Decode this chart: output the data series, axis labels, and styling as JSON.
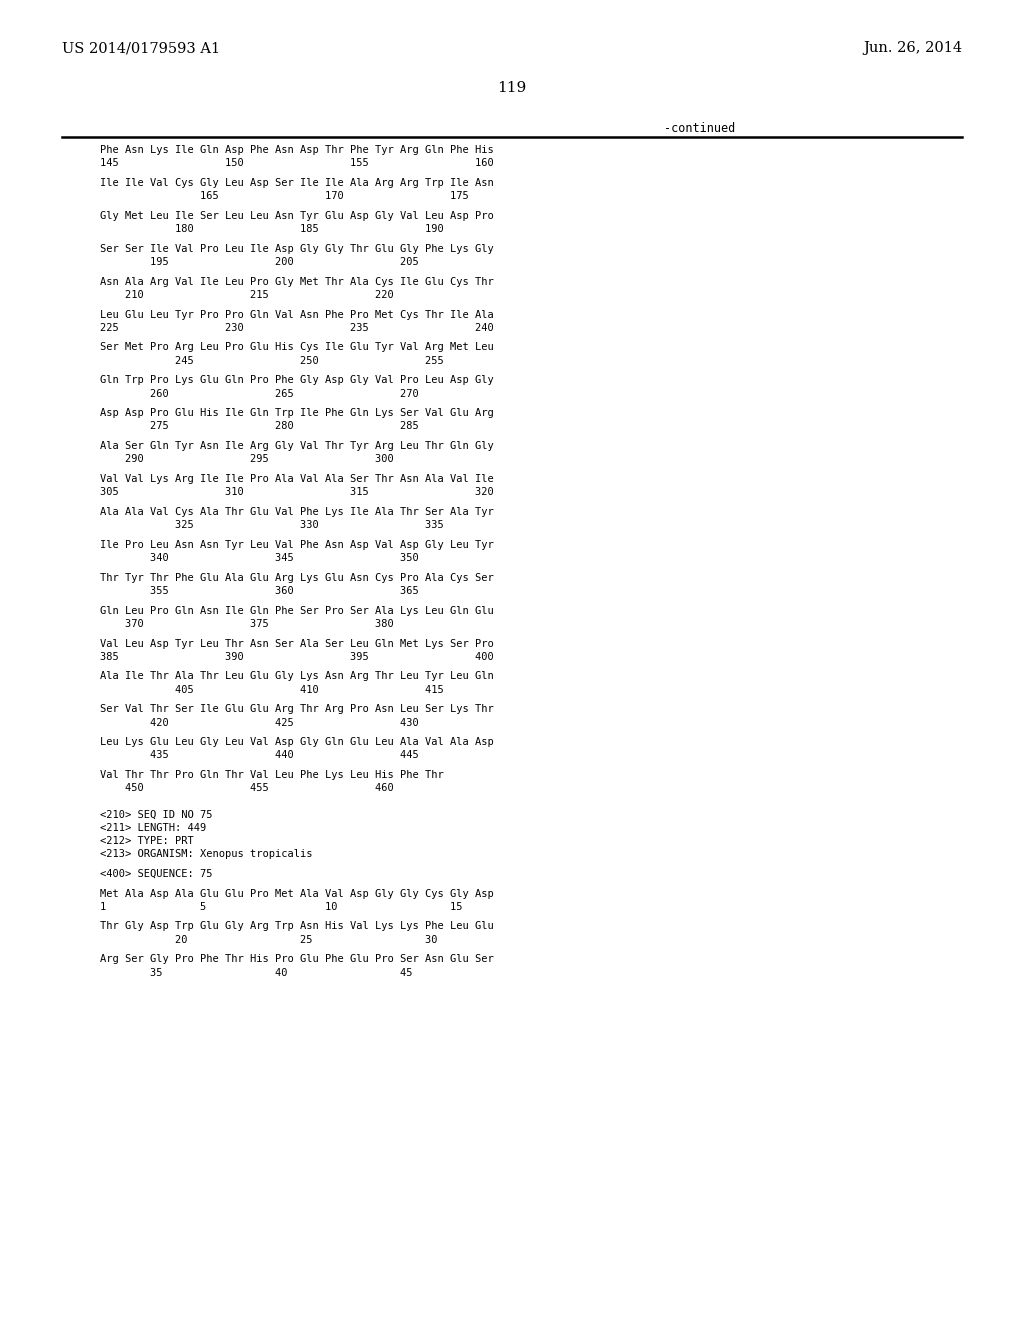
{
  "header_left": "US 2014/0179593 A1",
  "header_right": "Jun. 26, 2014",
  "page_number": "119",
  "continued_label": "-continued",
  "background_color": "#ffffff",
  "text_color": "#000000",
  "content": [
    [
      "Phe Asn Lys Ile Gln Asp Phe Asn Asp Thr Phe Tyr Arg Gln Phe His",
      "seq"
    ],
    [
      "145                 150                 155                 160",
      "num"
    ],
    [
      "",
      "blank"
    ],
    [
      "Ile Ile Val Cys Gly Leu Asp Ser Ile Ile Ala Arg Arg Trp Ile Asn",
      "seq"
    ],
    [
      "                165                 170                 175",
      "num"
    ],
    [
      "",
      "blank"
    ],
    [
      "Gly Met Leu Ile Ser Leu Leu Asn Tyr Glu Asp Gly Val Leu Asp Pro",
      "seq"
    ],
    [
      "            180                 185                 190",
      "num"
    ],
    [
      "",
      "blank"
    ],
    [
      "Ser Ser Ile Val Pro Leu Ile Asp Gly Gly Thr Glu Gly Phe Lys Gly",
      "seq"
    ],
    [
      "        195                 200                 205",
      "num"
    ],
    [
      "",
      "blank"
    ],
    [
      "Asn Ala Arg Val Ile Leu Pro Gly Met Thr Ala Cys Ile Glu Cys Thr",
      "seq"
    ],
    [
      "    210                 215                 220",
      "num"
    ],
    [
      "",
      "blank"
    ],
    [
      "Leu Glu Leu Tyr Pro Pro Gln Val Asn Phe Pro Met Cys Thr Ile Ala",
      "seq"
    ],
    [
      "225                 230                 235                 240",
      "num"
    ],
    [
      "",
      "blank"
    ],
    [
      "Ser Met Pro Arg Leu Pro Glu His Cys Ile Glu Tyr Val Arg Met Leu",
      "seq"
    ],
    [
      "            245                 250                 255",
      "num"
    ],
    [
      "",
      "blank"
    ],
    [
      "Gln Trp Pro Lys Glu Gln Pro Phe Gly Asp Gly Val Pro Leu Asp Gly",
      "seq"
    ],
    [
      "        260                 265                 270",
      "num"
    ],
    [
      "",
      "blank"
    ],
    [
      "Asp Asp Pro Glu His Ile Gln Trp Ile Phe Gln Lys Ser Val Glu Arg",
      "seq"
    ],
    [
      "        275                 280                 285",
      "num"
    ],
    [
      "",
      "blank"
    ],
    [
      "Ala Ser Gln Tyr Asn Ile Arg Gly Val Thr Tyr Arg Leu Thr Gln Gly",
      "seq"
    ],
    [
      "    290                 295                 300",
      "num"
    ],
    [
      "",
      "blank"
    ],
    [
      "Val Val Lys Arg Ile Ile Pro Ala Val Ala Ser Thr Asn Ala Val Ile",
      "seq"
    ],
    [
      "305                 310                 315                 320",
      "num"
    ],
    [
      "",
      "blank"
    ],
    [
      "Ala Ala Val Cys Ala Thr Glu Val Phe Lys Ile Ala Thr Ser Ala Tyr",
      "seq"
    ],
    [
      "            325                 330                 335",
      "num"
    ],
    [
      "",
      "blank"
    ],
    [
      "Ile Pro Leu Asn Asn Tyr Leu Val Phe Asn Asp Val Asp Gly Leu Tyr",
      "seq"
    ],
    [
      "        340                 345                 350",
      "num"
    ],
    [
      "",
      "blank"
    ],
    [
      "Thr Tyr Thr Phe Glu Ala Glu Arg Lys Glu Asn Cys Pro Ala Cys Ser",
      "seq"
    ],
    [
      "        355                 360                 365",
      "num"
    ],
    [
      "",
      "blank"
    ],
    [
      "Gln Leu Pro Gln Asn Ile Gln Phe Ser Pro Ser Ala Lys Leu Gln Glu",
      "seq"
    ],
    [
      "    370                 375                 380",
      "num"
    ],
    [
      "",
      "blank"
    ],
    [
      "Val Leu Asp Tyr Leu Thr Asn Ser Ala Ser Leu Gln Met Lys Ser Pro",
      "seq"
    ],
    [
      "385                 390                 395                 400",
      "num"
    ],
    [
      "",
      "blank"
    ],
    [
      "Ala Ile Thr Ala Thr Leu Glu Gly Lys Asn Arg Thr Leu Tyr Leu Gln",
      "seq"
    ],
    [
      "            405                 410                 415",
      "num"
    ],
    [
      "",
      "blank"
    ],
    [
      "Ser Val Thr Ser Ile Glu Glu Arg Thr Arg Pro Asn Leu Ser Lys Thr",
      "seq"
    ],
    [
      "        420                 425                 430",
      "num"
    ],
    [
      "",
      "blank"
    ],
    [
      "Leu Lys Glu Leu Gly Leu Val Asp Gly Gln Glu Leu Ala Val Ala Asp",
      "seq"
    ],
    [
      "        435                 440                 445",
      "num"
    ],
    [
      "",
      "blank"
    ],
    [
      "Val Thr Thr Pro Gln Thr Val Leu Phe Lys Leu His Phe Thr",
      "seq"
    ],
    [
      "    450                 455                 460",
      "num"
    ],
    [
      "",
      "blank"
    ],
    [
      "",
      "blank"
    ],
    [
      "<210> SEQ ID NO 75",
      "meta"
    ],
    [
      "<211> LENGTH: 449",
      "meta"
    ],
    [
      "<212> TYPE: PRT",
      "meta"
    ],
    [
      "<213> ORGANISM: Xenopus tropicalis",
      "meta"
    ],
    [
      "",
      "blank"
    ],
    [
      "<400> SEQUENCE: 75",
      "meta"
    ],
    [
      "",
      "blank"
    ],
    [
      "Met Ala Asp Ala Glu Glu Pro Met Ala Val Asp Gly Gly Cys Gly Asp",
      "seq"
    ],
    [
      "1               5                   10                  15",
      "num"
    ],
    [
      "",
      "blank"
    ],
    [
      "Thr Gly Asp Trp Glu Gly Arg Trp Asn His Val Lys Lys Phe Leu Glu",
      "seq"
    ],
    [
      "            20                  25                  30",
      "num"
    ],
    [
      "",
      "blank"
    ],
    [
      "Arg Ser Gly Pro Phe Thr His Pro Glu Phe Glu Pro Ser Asn Glu Ser",
      "seq"
    ],
    [
      "        35                  40                  45",
      "num"
    ]
  ]
}
